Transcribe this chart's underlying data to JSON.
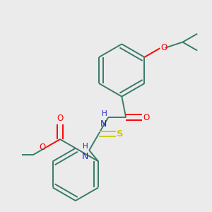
{
  "bg_color": "#ebebeb",
  "bond_color": "#3a7a6a",
  "O_color": "#ff0000",
  "N_color": "#2222cc",
  "S_color": "#cccc00",
  "line_width": 1.4,
  "dbo": 0.013,
  "figsize": [
    3.0,
    3.0
  ],
  "dpi": 100,
  "xlim": [
    0.0,
    1.0
  ],
  "ylim": [
    0.0,
    1.0
  ]
}
